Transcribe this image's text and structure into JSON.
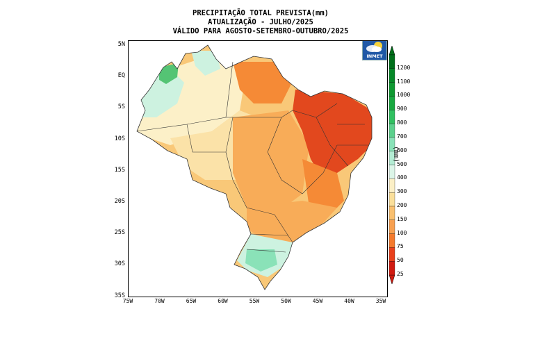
{
  "title": {
    "line1": "PRECIPITAÇÃO TOTAL PREVISTA(mm)",
    "line2": "ATUALIZAÇÃO - JULHO/2025",
    "line3": "VÁLIDO PARA AGOSTO-SETEMBRO-OUTUBRO/2025"
  },
  "logo_text": "INMET",
  "lat_labels": [
    "5N",
    "EQ",
    "5S",
    "10S",
    "15S",
    "20S",
    "25S",
    "30S",
    "35S"
  ],
  "lon_labels": [
    "75W",
    "70W",
    "65W",
    "60W",
    "55W",
    "50W",
    "45W",
    "40W",
    "35W"
  ],
  "colorbar": {
    "unit": "(mm)",
    "levels": [
      "25",
      "50",
      "75",
      "100",
      "150",
      "200",
      "300",
      "400",
      "500",
      "600",
      "700",
      "800",
      "900",
      "1000",
      "1100",
      "1200"
    ],
    "colors": [
      "#d01a10",
      "#e8401c",
      "#f47a2c",
      "#f7a050",
      "#f9c070",
      "#fadf9a",
      "#fbefc6",
      "#dcf5e8",
      "#b4ecd4",
      "#8ae2b8",
      "#5cd08c",
      "#30c060",
      "#18a840",
      "#0e9830",
      "#068828",
      "#006f1a"
    ]
  },
  "regions_colors": {
    "very_dry": "#e2481e",
    "dry": "#f58a36",
    "moderate": "#f8ac58",
    "mild": "#f9c878",
    "light": "#fbe2a8",
    "pale": "#fcf0c8",
    "cyan": "#cdf2e0",
    "green": "#54c474"
  }
}
